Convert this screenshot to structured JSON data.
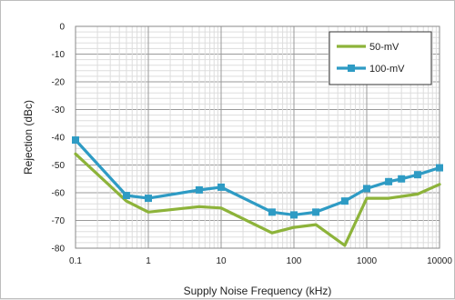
{
  "chart_data": {
    "type": "line",
    "title": "",
    "xlabel": "Supply Noise Frequency (kHz)",
    "ylabel": "Rejection (dBc)",
    "x_scale": "log",
    "xlim": [
      0.1,
      10000
    ],
    "ylim": [
      -80,
      0
    ],
    "x_ticks": [
      "0.1",
      "1",
      "10",
      "100",
      "1000",
      "10000"
    ],
    "y_ticks": [
      "0",
      "-10",
      "-20",
      "-30",
      "-40",
      "-50",
      "-60",
      "-70",
      "-80"
    ],
    "grid": true,
    "legend_position": "top-right",
    "series": [
      {
        "name": "50-mV",
        "color": "#8db33a",
        "marker": "none",
        "points": [
          [
            0.1,
            -46
          ],
          [
            0.5,
            -63
          ],
          [
            1,
            -67
          ],
          [
            5,
            -65
          ],
          [
            10,
            -65.5
          ],
          [
            50,
            -74.5
          ],
          [
            100,
            -72.5
          ],
          [
            200,
            -71.5
          ],
          [
            500,
            -79
          ],
          [
            1000,
            -62
          ],
          [
            2000,
            -62
          ],
          [
            5000,
            -60.5
          ],
          [
            10000,
            -57
          ]
        ]
      },
      {
        "name": "100-mV",
        "color": "#2e9bc4",
        "marker": "square",
        "points": [
          [
            0.1,
            -41
          ],
          [
            0.5,
            -61
          ],
          [
            1,
            -62
          ],
          [
            5,
            -59
          ],
          [
            10,
            -58
          ],
          [
            50,
            -67
          ],
          [
            100,
            -68
          ],
          [
            200,
            -67
          ],
          [
            500,
            -63
          ],
          [
            1000,
            -58.5
          ],
          [
            2000,
            -56
          ],
          [
            3000,
            -55
          ],
          [
            5000,
            -53.5
          ],
          [
            10000,
            -51
          ]
        ]
      }
    ]
  }
}
